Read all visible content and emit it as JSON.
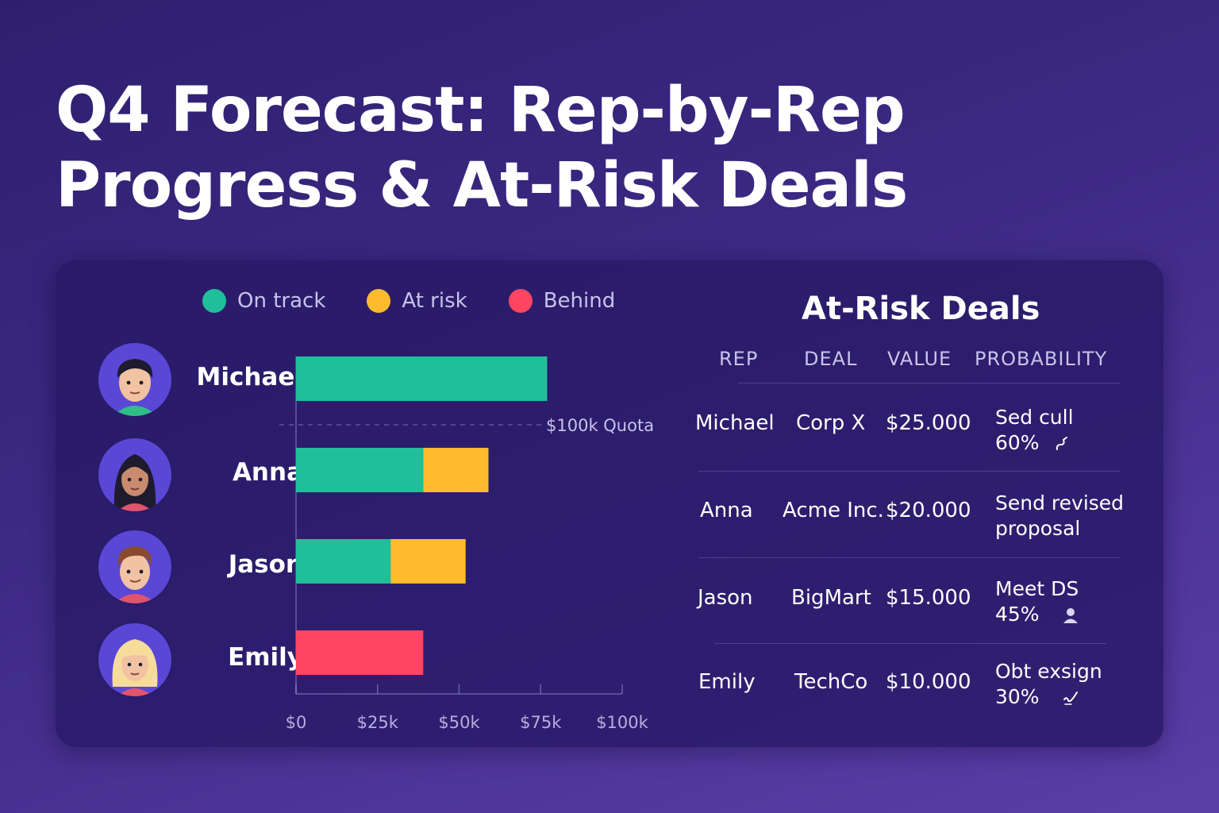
{
  "title": {
    "line1": "Q4 Forecast: Rep-by-Rep",
    "line2": "Progress & At-Risk Deals"
  },
  "colors": {
    "on_track": "#1fbf9a",
    "at_risk": "#fdbb2d",
    "behind": "#ff4560"
  },
  "legend": [
    {
      "label": "On track",
      "color": "#1fbf9a"
    },
    {
      "label": "At risk",
      "color": "#fdbb2d"
    },
    {
      "label": "Behind",
      "color": "#ff4560"
    }
  ],
  "chart_data": {
    "type": "bar",
    "orientation": "horizontal",
    "stacked": true,
    "title": "",
    "xlabel": "",
    "ylabel": "",
    "categories": [
      "Michael",
      "Anna",
      "Jason",
      "Emily"
    ],
    "series": [
      {
        "name": "On track",
        "color": "#1fbf9a",
        "values": [
          77,
          39,
          29,
          0
        ]
      },
      {
        "name": "At risk",
        "color": "#fdbb2d",
        "values": [
          0,
          20,
          23,
          0
        ]
      },
      {
        "name": "Behind",
        "color": "#ff4560",
        "values": [
          0,
          0,
          0,
          39
        ]
      }
    ],
    "xlim": [
      0,
      100
    ],
    "xticks": [
      0,
      25,
      50,
      75,
      100
    ],
    "xtick_labels": [
      "$0",
      "$25k",
      "$50k",
      "$75k",
      "$100k"
    ],
    "reference_line": {
      "value": 100,
      "label": "$100k Quota"
    },
    "legend_position": "top"
  },
  "reps": [
    {
      "name": "Michael",
      "avatar_icon": "man-short-dark-hair-avatar-icon"
    },
    {
      "name": "Anna",
      "avatar_icon": "woman-long-dark-hair-avatar-icon"
    },
    {
      "name": "Jason",
      "avatar_icon": "man-brown-hair-avatar-icon"
    },
    {
      "name": "Emily",
      "avatar_icon": "woman-blonde-hair-avatar-icon"
    }
  ],
  "at_risk_table": {
    "title": "At-Risk Deals",
    "headers": {
      "rep": "REP",
      "deal": "DEAL",
      "value": "VALUE",
      "probability": "PROBABILITY"
    },
    "rows": [
      {
        "rep": "Michael",
        "deal": "Corp X",
        "value": "$25.000",
        "action": "Sed cull",
        "probability": "60%",
        "icon": "edit-icon"
      },
      {
        "rep": "Anna",
        "deal": "Acme Inc.",
        "value": "$20.000",
        "action": "Send revised",
        "probability": "proposal",
        "icon": ""
      },
      {
        "rep": "Jason",
        "deal": "BigMart",
        "value": "$15.000",
        "action": "Meet DS",
        "probability": "45%",
        "icon": "person-icon"
      },
      {
        "rep": "Emily",
        "deal": "TechCo",
        "value": "$10.000",
        "action": "Obt exsign",
        "probability": "30%",
        "icon": "signature-icon"
      }
    ]
  }
}
